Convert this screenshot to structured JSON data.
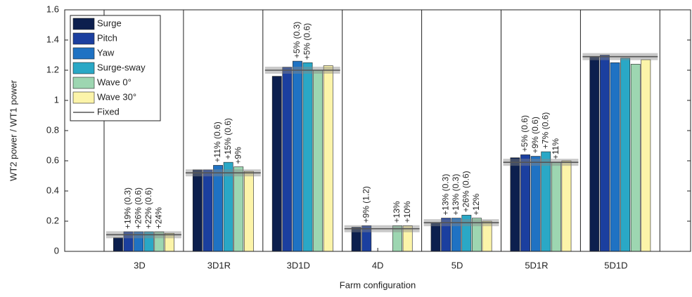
{
  "chart_data": {
    "type": "bar",
    "x_label": "Farm configuration",
    "y_label": "WT2 power / WT1 power",
    "categories": [
      "3D",
      "3D1R",
      "3D1D",
      "4D",
      "5D",
      "5D1R",
      "5D1D"
    ],
    "ylim": [
      0,
      1.6
    ],
    "yticks": [
      0,
      0.2,
      0.4,
      0.6,
      0.8,
      1,
      1.2,
      1.4,
      1.6
    ],
    "legend": "top-left",
    "series": [
      {
        "name": "Surge",
        "color": "#0c1f4e",
        "values": [
          0.09,
          0.54,
          1.16,
          0.16,
          0.19,
          0.62,
          1.29
        ],
        "annotations": [
          null,
          null,
          null,
          null,
          null,
          null,
          null
        ]
      },
      {
        "name": "Pitch",
        "color": "#1b3f9f",
        "values": [
          0.13,
          0.54,
          1.22,
          0.17,
          0.22,
          0.64,
          1.3
        ],
        "annotations": [
          "+19% (0.3)",
          null,
          null,
          "+9% (1.2)",
          "+13% (0.3)",
          "+5% (0.6)",
          null
        ]
      },
      {
        "name": "Yaw",
        "color": "#1f72c3",
        "values": [
          0.13,
          0.57,
          1.26,
          null,
          0.22,
          0.63,
          1.25
        ],
        "annotations": [
          "+26% (0.6)",
          "+11% (0.6)",
          "+5% (0.3)",
          null,
          "+13% (0.3)",
          "+9% (0.6)",
          null
        ]
      },
      {
        "name": "Surge-sway",
        "color": "#2aa8c6",
        "values": [
          0.13,
          0.59,
          1.25,
          null,
          0.24,
          0.66,
          1.28
        ],
        "annotations": [
          "+22% (0.6)",
          "+15% (0.6)",
          "+5% (0.6)",
          null,
          "+26% (0.6)",
          "+7% (0.6)",
          null
        ]
      },
      {
        "name": "Wave 0°",
        "color": "#9dd6b1",
        "values": [
          0.13,
          0.56,
          1.2,
          0.17,
          0.22,
          0.59,
          1.24
        ],
        "annotations": [
          "+24%",
          "+9%",
          null,
          "+13%",
          "+12%",
          "+11%",
          null
        ]
      },
      {
        "name": "Wave 30°",
        "color": "#fcf4a9",
        "values": [
          0.12,
          0.53,
          1.23,
          0.17,
          0.2,
          0.6,
          1.27
        ],
        "annotations": [
          null,
          null,
          null,
          "+10%",
          null,
          null,
          null
        ]
      }
    ],
    "fixed": {
      "name": "Fixed",
      "color": "#555555",
      "values": [
        0.11,
        0.52,
        1.2,
        0.15,
        0.19,
        0.59,
        1.29
      ]
    }
  }
}
